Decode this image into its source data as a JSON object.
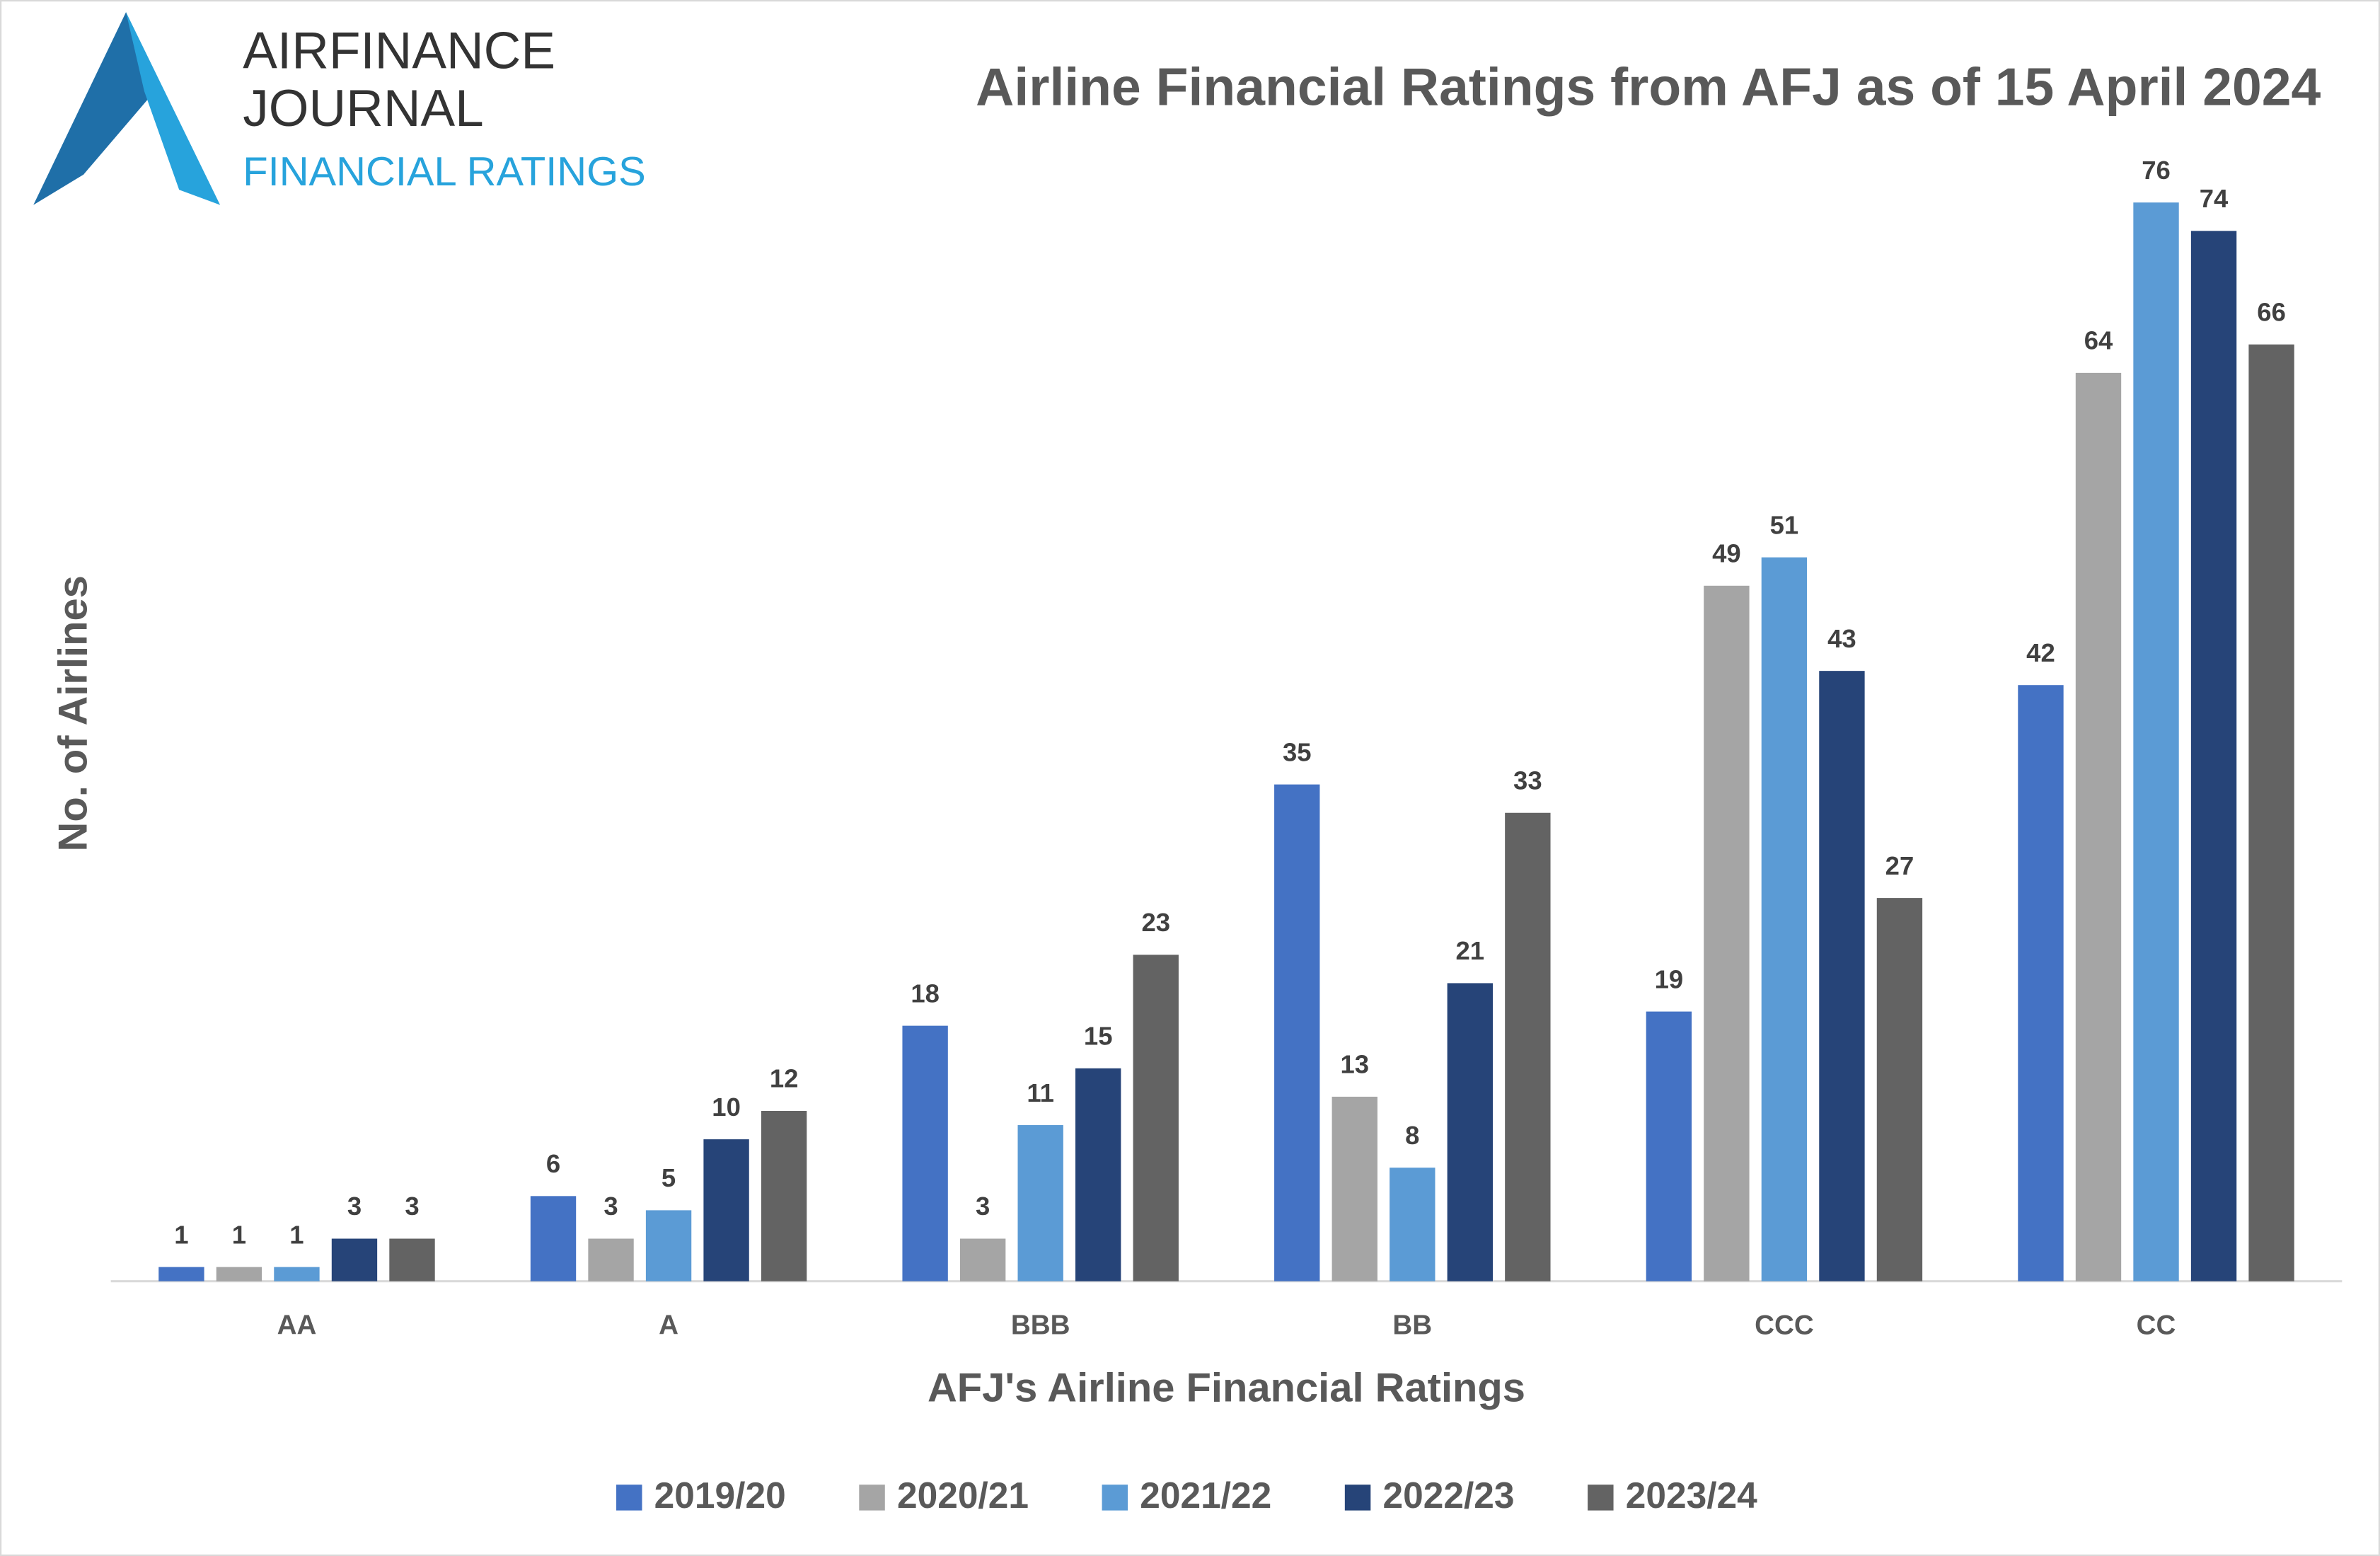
{
  "logo": {
    "line1": "AIRFINANCE",
    "line2": "JOURNAL",
    "line3": "FINANCIAL RATINGS"
  },
  "chart_data": {
    "type": "bar",
    "title": "Airline Financial Ratings from AFJ as of 15 April 2024",
    "x_label": "AFJ's Airline Financial Ratings",
    "y_label": "No. of Airlines",
    "categories": [
      "AA",
      "A",
      "BBB",
      "BB",
      "CCC",
      "CC"
    ],
    "series": [
      {
        "name": "2019/20",
        "color": "#4472c4",
        "values": [
          1,
          6,
          18,
          35,
          19,
          42
        ]
      },
      {
        "name": "2020/21",
        "color": "#a5a5a5",
        "values": [
          1,
          3,
          3,
          13,
          49,
          64
        ]
      },
      {
        "name": "2021/22",
        "color": "#5b9bd5",
        "values": [
          1,
          5,
          11,
          8,
          51,
          76
        ]
      },
      {
        "name": "2022/23",
        "color": "#264478",
        "values": [
          3,
          10,
          15,
          21,
          43,
          74
        ]
      },
      {
        "name": "2023/24",
        "color": "#636363",
        "values": [
          3,
          12,
          23,
          33,
          27,
          66
        ]
      }
    ],
    "ylim": [
      0,
      80
    ],
    "legend": "bottom"
  }
}
